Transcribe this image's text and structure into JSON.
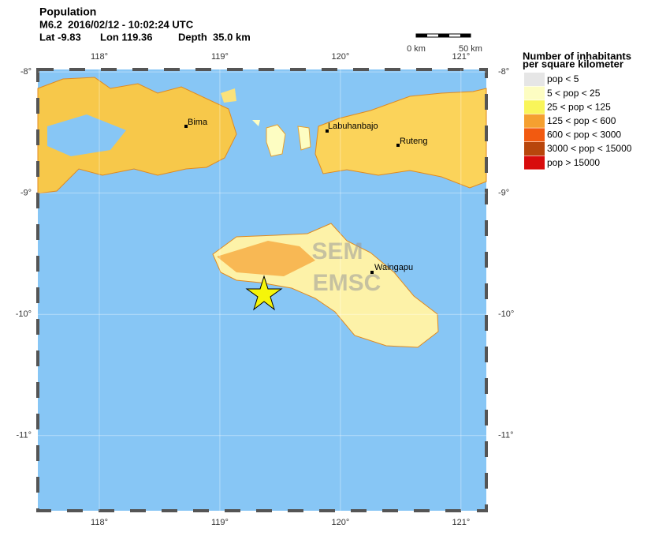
{
  "header": {
    "title": "Population",
    "event": "M6.2  2016/02/12 - 10:02:24 UTC",
    "lat": "Lat -9.83",
    "lon": "Lon 119.36",
    "depth": "Depth  35.0 km"
  },
  "map": {
    "xlim": [
      117.49,
      121.21
    ],
    "ylim": [
      -7.98,
      -11.62
    ],
    "xticks": [
      {
        "value": 118,
        "label": "118°"
      },
      {
        "value": 119,
        "label": "119°"
      },
      {
        "value": 120,
        "label": "120°"
      },
      {
        "value": 121,
        "label": "121°"
      }
    ],
    "yticks": [
      {
        "value": -8,
        "label": "-8°"
      },
      {
        "value": -9,
        "label": "-9°"
      },
      {
        "value": -10,
        "label": "-10°"
      },
      {
        "value": -11,
        "label": "-11°"
      }
    ],
    "cities": [
      "Bima",
      "Labuhanbajo",
      "Ruteng",
      "Waingapu"
    ],
    "watermark": [
      "SEM",
      "EMSC"
    ]
  },
  "scale": {
    "start": "0 km",
    "end": "50 km"
  },
  "legend": {
    "title": [
      "Number of inhabitants",
      "per square kilometer"
    ],
    "items": [
      {
        "label": "pop < 5",
        "color": "#e6e6e6"
      },
      {
        "label": "5 < pop < 25",
        "color": "#fdfdc2"
      },
      {
        "label": "25 < pop < 125",
        "color": "#f9f55a"
      },
      {
        "label": "125 < pop < 600",
        "color": "#f5a030"
      },
      {
        "label": "600 < pop < 3000",
        "color": "#f25a10"
      },
      {
        "label": "3000 < pop < 15000",
        "color": "#b8460c"
      },
      {
        "label": "pop > 15000",
        "color": "#d80c0c"
      }
    ]
  }
}
